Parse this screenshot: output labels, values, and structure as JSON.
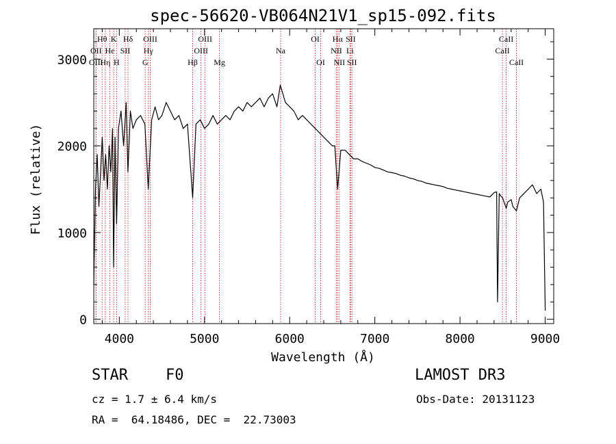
{
  "chart_data": {
    "type": "line",
    "title": "spec-56620-VB064N21V1_sp15-092.fits",
    "xlabel": "Wavelength (Å)",
    "ylabel": "Flux (relative)",
    "xlim": [
      3700,
      9100
    ],
    "ylim": [
      -50,
      3350
    ],
    "x_ticks": [
      4000,
      5000,
      6000,
      7000,
      8000,
      9000
    ],
    "y_ticks": [
      0,
      1000,
      2000,
      3000
    ],
    "x_tick_labels": [
      "4000",
      "5000",
      "6000",
      "7000",
      "8000",
      "9000"
    ],
    "y_tick_labels": [
      "0",
      "1000",
      "2000",
      "3000"
    ],
    "series": [
      {
        "name": "spectrum",
        "color": "#000000",
        "x": [
          3700,
          3720,
          3740,
          3760,
          3780,
          3800,
          3820,
          3840,
          3860,
          3880,
          3900,
          3920,
          3933,
          3950,
          3968,
          3990,
          4020,
          4050,
          4080,
          4101,
          4130,
          4160,
          4200,
          4250,
          4300,
          4340,
          4380,
          4420,
          4460,
          4500,
          4550,
          4600,
          4650,
          4700,
          4750,
          4800,
          4861,
          4900,
          4950,
          5000,
          5050,
          5100,
          5150,
          5200,
          5250,
          5300,
          5350,
          5400,
          5450,
          5500,
          5550,
          5600,
          5650,
          5700,
          5750,
          5800,
          5850,
          5890,
          5950,
          6000,
          6050,
          6100,
          6150,
          6200,
          6250,
          6300,
          6350,
          6400,
          6450,
          6500,
          6530,
          6563,
          6600,
          6650,
          6700,
          6750,
          6800,
          6850,
          6900,
          6950,
          7000,
          7050,
          7100,
          7150,
          7200,
          7250,
          7300,
          7350,
          7400,
          7450,
          7500,
          7550,
          7600,
          7650,
          7700,
          7750,
          7800,
          7850,
          7900,
          7950,
          8000,
          8050,
          8100,
          8150,
          8200,
          8250,
          8300,
          8350,
          8400,
          8430,
          8440,
          8460,
          8480,
          8500,
          8542,
          8560,
          8600,
          8620,
          8662,
          8700,
          8750,
          8800,
          8850,
          8900,
          8950,
          8980,
          9000
        ],
        "y": [
          400,
          1500,
          1900,
          1300,
          1700,
          2100,
          1600,
          1900,
          1500,
          2000,
          1700,
          2200,
          600,
          2100,
          1100,
          2200,
          2400,
          2000,
          2500,
          1700,
          2400,
          2200,
          2300,
          2350,
          2250,
          1500,
          2300,
          2450,
          2300,
          2350,
          2500,
          2400,
          2300,
          2350,
          2200,
          2250,
          1400,
          2250,
          2300,
          2200,
          2250,
          2350,
          2250,
          2300,
          2350,
          2300,
          2400,
          2450,
          2400,
          2500,
          2450,
          2500,
          2550,
          2450,
          2550,
          2600,
          2450,
          2700,
          2500,
          2450,
          2400,
          2300,
          2350,
          2300,
          2250,
          2200,
          2150,
          2100,
          2050,
          2000,
          2000,
          1500,
          1950,
          1950,
          1900,
          1850,
          1850,
          1820,
          1800,
          1780,
          1750,
          1740,
          1720,
          1700,
          1690,
          1680,
          1660,
          1650,
          1630,
          1620,
          1600,
          1590,
          1570,
          1560,
          1550,
          1540,
          1530,
          1510,
          1500,
          1490,
          1480,
          1470,
          1460,
          1450,
          1440,
          1430,
          1420,
          1410,
          1460,
          1470,
          200,
          1450,
          1420,
          1400,
          1280,
          1350,
          1380,
          1300,
          1250,
          1400,
          1450,
          1500,
          1550,
          1450,
          1500,
          1350,
          100
        ]
      }
    ],
    "line_markers": [
      {
        "label": "Hθ",
        "wavelength": 3798,
        "row": 1
      },
      {
        "label": "OII",
        "wavelength": 3727,
        "row": 2
      },
      {
        "label": "OIII",
        "wavelength": 3726,
        "row": 3
      },
      {
        "label": "Hη",
        "wavelength": 3835,
        "row": 3
      },
      {
        "label": "He",
        "wavelength": 3889,
        "row": 2
      },
      {
        "label": "K",
        "wavelength": 3934,
        "row": 1
      },
      {
        "label": "H",
        "wavelength": 3968,
        "row": 3
      },
      {
        "label": "SII",
        "wavelength": 4069,
        "row": 2
      },
      {
        "label": "Hδ",
        "wavelength": 4102,
        "row": 1
      },
      {
        "label": "OIII",
        "wavelength": 4363,
        "row": 1
      },
      {
        "label": "Hγ",
        "wavelength": 4341,
        "row": 2
      },
      {
        "label": "G",
        "wavelength": 4304,
        "row": 3
      },
      {
        "label": "Hβ",
        "wavelength": 4861,
        "row": 3
      },
      {
        "label": "OIII",
        "wavelength": 5007,
        "row": 1
      },
      {
        "label": "OIII",
        "wavelength": 4959,
        "row": 2
      },
      {
        "label": "Mg",
        "wavelength": 5175,
        "row": 3
      },
      {
        "label": "Na",
        "wavelength": 5894,
        "row": 2
      },
      {
        "label": "OI",
        "wavelength": 6300,
        "row": 1
      },
      {
        "label": "OI",
        "wavelength": 6364,
        "row": 3
      },
      {
        "label": "Hα",
        "wavelength": 6563,
        "row": 1
      },
      {
        "label": "NII",
        "wavelength": 6548,
        "row": 2
      },
      {
        "label": "NII",
        "wavelength": 6583,
        "row": 3
      },
      {
        "label": "SII",
        "wavelength": 6716,
        "row": 1
      },
      {
        "label": "Li",
        "wavelength": 6708,
        "row": 2
      },
      {
        "label": "SII",
        "wavelength": 6731,
        "row": 3
      },
      {
        "label": "CaII",
        "wavelength": 8542,
        "row": 1
      },
      {
        "label": "CaII",
        "wavelength": 8498,
        "row": 2
      },
      {
        "label": "CaII",
        "wavelength": 8662,
        "row": 3
      }
    ],
    "marker_color": "#cc2222",
    "grid": false,
    "legend": "none"
  },
  "info": {
    "object_class": "STAR",
    "subclass": "F0",
    "survey": "LAMOST DR3",
    "cz": "cz = 1.7 ± 6.4 km/s",
    "obs_date": "Obs-Date: 20131123",
    "coords": "RA =  64.18486, DEC =  22.73003"
  }
}
